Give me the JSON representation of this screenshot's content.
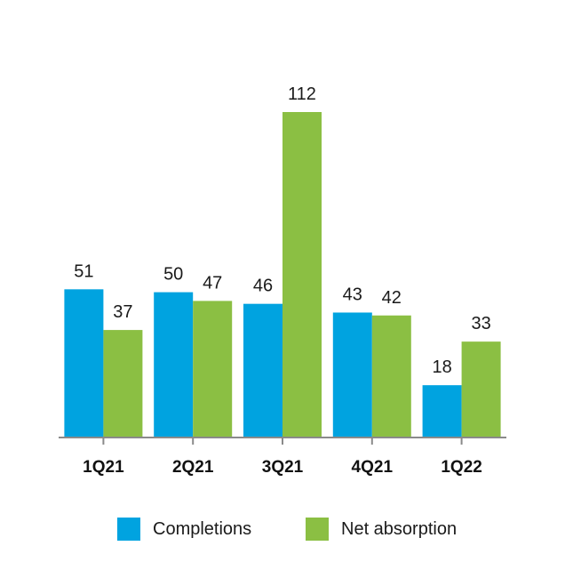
{
  "chart_data": {
    "type": "bar",
    "categories": [
      "1Q21",
      "2Q21",
      "3Q21",
      "4Q21",
      "1Q22"
    ],
    "series": [
      {
        "name": "Completions",
        "color": "#00a3e0",
        "values": [
          51,
          50,
          46,
          43,
          18
        ]
      },
      {
        "name": "Net absorption",
        "color": "#8bbf43",
        "values": [
          37,
          47,
          112,
          42,
          33
        ]
      }
    ],
    "title": "",
    "xlabel": "",
    "ylabel": "",
    "ylim": [
      0,
      112
    ],
    "grid": false,
    "legend_position": "bottom"
  }
}
